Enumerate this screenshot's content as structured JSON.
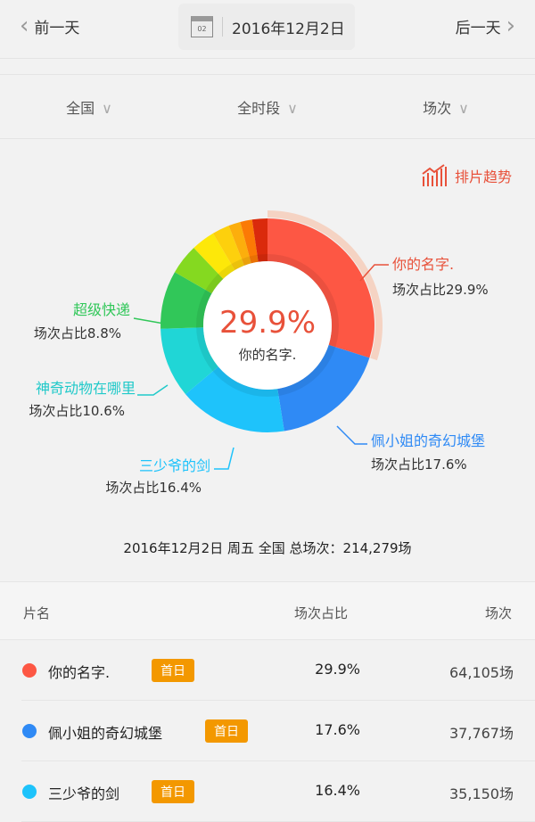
{
  "header": {
    "prev_label": "前一天",
    "next_label": "后一天",
    "date": "2016年12月2日",
    "calendar_day": "02"
  },
  "filters": [
    {
      "label": "全国"
    },
    {
      "label": "全时段"
    },
    {
      "label": "场次"
    }
  ],
  "trend_label": "排片趋势",
  "chart_data": {
    "type": "pie",
    "variant": "donut",
    "center_value": "29.9%",
    "center_label": "你的名字.",
    "slices": [
      {
        "name": "你的名字.",
        "value": 29.9,
        "color": "#fd5744",
        "label": "场次占比29.9%",
        "label_color": "#e8513a",
        "highlighted": true
      },
      {
        "name": "佩小姐的奇幻城堡",
        "value": 17.6,
        "color": "#2f8af5",
        "label": "场次占比17.6%",
        "label_color": "#2f8af5"
      },
      {
        "name": "三少爷的剑",
        "value": 16.4,
        "color": "#1ec3fb",
        "label": "场次占比16.4%",
        "label_color": "#1ec3fb"
      },
      {
        "name": "神奇动物在哪里",
        "value": 10.6,
        "color": "#20d6d6",
        "label": "场次占比10.6%",
        "label_color": "#20c9c9"
      },
      {
        "name": "超级快递",
        "value": 8.8,
        "color": "#31c759",
        "label": "场次占比8.8%",
        "label_color": "#31c759"
      },
      {
        "value": 4.6,
        "color": "#85d920"
      },
      {
        "value": 3.6,
        "color": "#fde809"
      },
      {
        "value": 2.6,
        "color": "#fdd00d"
      },
      {
        "value": 1.8,
        "color": "#fcae0c"
      },
      {
        "value": 1.8,
        "color": "#fb7a05"
      },
      {
        "value": 2.3,
        "color": "#da2a0c"
      }
    ]
  },
  "summary": "2016年12月2日  周五  全国  总场次：214,279场",
  "table": {
    "headers": [
      "片名",
      "场次占比",
      "场次"
    ],
    "rows": [
      {
        "name": "你的名字.",
        "badge": "首日",
        "share": "29.9%",
        "count": "64,105场",
        "color": "#fd5744"
      },
      {
        "name": "佩小姐的奇幻城堡",
        "badge": "首日",
        "share": "17.6%",
        "count": "37,767场",
        "color": "#2f8af5"
      },
      {
        "name": "三少爷的剑",
        "badge": "首日",
        "share": "16.4%",
        "count": "35,150场",
        "color": "#1ec3fb"
      }
    ]
  }
}
